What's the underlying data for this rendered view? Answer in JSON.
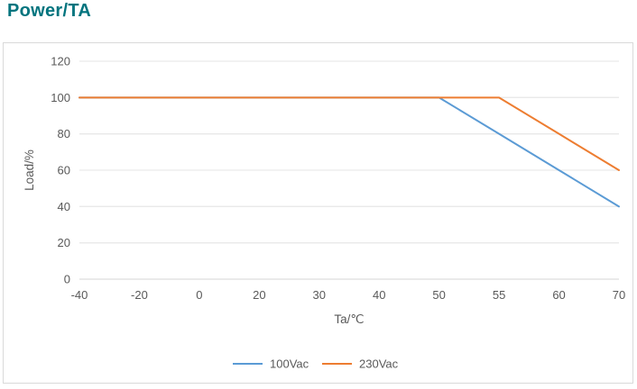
{
  "title": "Power/TA",
  "colors": {
    "title_text": "#00747e",
    "tick_text": "#595959",
    "gridline": "#e9e9e9",
    "axis_line": "#dedede",
    "frame_border": "#d9d9d9",
    "series_blue": "#5B9BD5",
    "series_orange": "#ED7D31"
  },
  "chart_data": {
    "type": "line",
    "title": "Power/TA",
    "xlabel": "Ta/℃",
    "ylabel": "Load/%",
    "categories": [
      "-40",
      "-20",
      "0",
      "20",
      "30",
      "40",
      "50",
      "55",
      "60",
      "70"
    ],
    "y_ticks": [
      0,
      20,
      40,
      60,
      80,
      100,
      120
    ],
    "ylim": [
      0,
      120
    ],
    "grid": "horizontal-only",
    "legend_position": "bottom-center",
    "x_axis_type": "category (labels evenly spaced)",
    "series": [
      {
        "name": "100Vac",
        "color": "#5B9BD5",
        "values": [
          100,
          100,
          100,
          100,
          100,
          100,
          100,
          80,
          60,
          40
        ]
      },
      {
        "name": "230Vac",
        "color": "#ED7D31",
        "values": [
          100,
          100,
          100,
          100,
          100,
          100,
          100,
          100,
          80,
          60
        ]
      }
    ]
  }
}
